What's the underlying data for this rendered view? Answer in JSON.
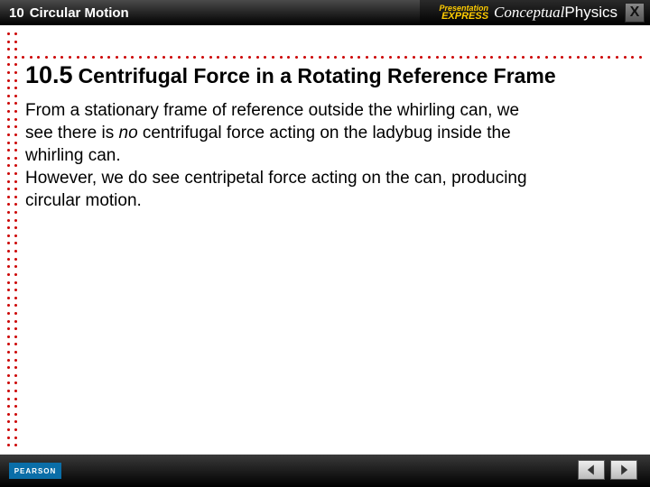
{
  "colors": {
    "dot": "#c00",
    "topbar_bg": "#000",
    "footer_bg": "#000",
    "brand_accent": "#fc0",
    "pearson_bg": "#0a6ea8",
    "text": "#000"
  },
  "header": {
    "chapter_number": "10",
    "chapter_title": "Circular Motion",
    "presentation_brand_small": "Presentation",
    "presentation_brand_big": "EXPRESS",
    "book_brand_italic": "Conceptual",
    "book_brand_plain": "Physics",
    "close_label": "X"
  },
  "section": {
    "number": "10.5",
    "title": "Centrifugal Force in a Rotating Reference Frame"
  },
  "body": {
    "p1a": "From a stationary frame of reference outside the whirling can, we see there is ",
    "p1_no": "no",
    "p1b": " centrifugal force acting on the ladybug inside the whirling can.",
    "p2": "However, we do see centripetal force acting on the can, producing circular motion."
  },
  "footer": {
    "publisher": "PEARSON"
  },
  "layout": {
    "vertical_dot_count": 54,
    "horizontal_dot_count": 80
  }
}
